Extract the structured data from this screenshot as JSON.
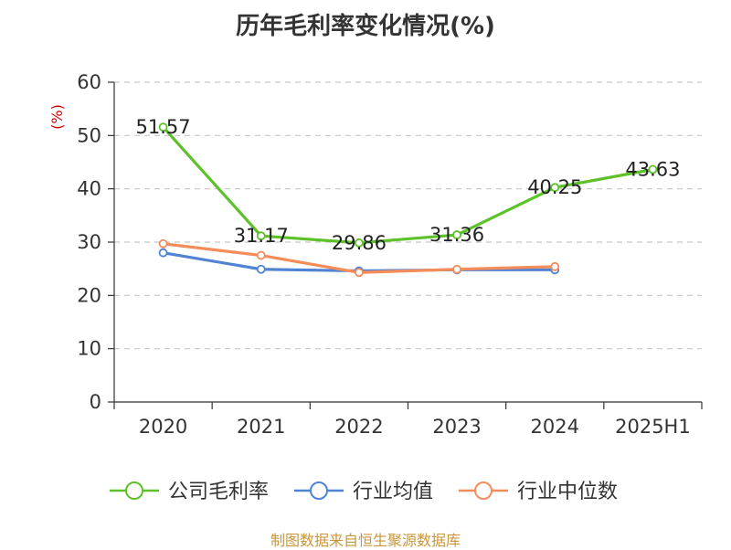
{
  "title": "历年毛利率变化情况(%)",
  "source": "制图数据来自恒生聚源数据库",
  "chart_data": {
    "type": "line",
    "title": "历年毛利率变化情况(%)",
    "ylabel": "(%)",
    "xlabel": "",
    "categories": [
      "2020",
      "2021",
      "2022",
      "2023",
      "2024",
      "2025H1"
    ],
    "ylim": [
      0,
      60
    ],
    "yticks": [
      0,
      10,
      20,
      30,
      40,
      50,
      60
    ],
    "grid": true,
    "legend_position": "bottom",
    "series": [
      {
        "name": "公司毛利率",
        "color": "#5ec12a",
        "values": [
          51.57,
          31.17,
          29.86,
          31.36,
          40.25,
          43.63
        ],
        "labels": [
          "51.57",
          "31.17",
          "29.86",
          "31.36",
          "40.25",
          "43.63"
        ]
      },
      {
        "name": "行业均值",
        "color": "#4f84d4",
        "values": [
          28.0,
          24.9,
          24.6,
          24.8,
          24.8,
          null
        ]
      },
      {
        "name": "行业中位数",
        "color": "#f58d5a",
        "values": [
          29.7,
          27.5,
          24.3,
          24.9,
          25.4,
          null
        ]
      }
    ]
  }
}
